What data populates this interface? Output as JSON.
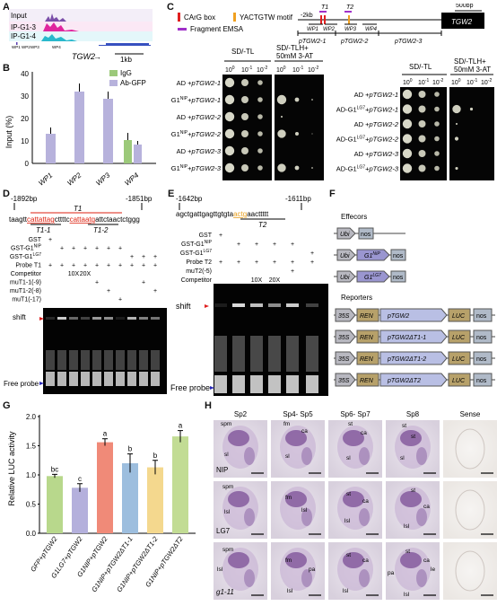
{
  "panel_labels": {
    "A": "A",
    "B": "B",
    "C": "C",
    "D": "D",
    "E": "E",
    "F": "F",
    "G": "G",
    "H": "H"
  },
  "panel_a": {
    "tracks": [
      "Input",
      "IP-G1-3",
      "IP-G1-4"
    ],
    "wp_labels": [
      "WP1",
      "WP2",
      "WP3",
      "WP4"
    ],
    "gene": "TGW2",
    "arrow": "→",
    "scale": "1kb"
  },
  "panel_b": {
    "legend": [
      "IgG",
      "Ab-GFP"
    ],
    "ylabel": "Input (%)",
    "yticks": [
      "0",
      "10",
      "20",
      "30",
      "40"
    ],
    "categories": [
      "WP1",
      "WP2",
      "WP3",
      "WP4"
    ]
  },
  "panel_c": {
    "legend": [
      "CArG box",
      "YACTGTW motif",
      "Fragment EMSA"
    ],
    "map": {
      "up": "-2kb",
      "t1": "T1",
      "t2": "T2",
      "wp": [
        "WP1",
        "WP2",
        "WP3",
        "WP4"
      ],
      "frags": [
        "pTGW2-1",
        "pTGW2-2",
        "pTGW2-3"
      ],
      "gene": "TGW2",
      "scale": "500bp"
    },
    "left": {
      "col1": "SD/-TL",
      "col2": "SD/-TLH+",
      "col2b": "50mM 3-AT",
      "dil": [
        "10",
        "10",
        "10"
      ],
      "dilexp": [
        "0",
        "-1",
        "-2"
      ],
      "rows": [
        [
          "AD +",
          "pTGW2-1"
        ],
        [
          "AD-G1",
          "pTGW2-1"
        ],
        [
          "AD +",
          "pTGW2-2"
        ],
        [
          "AD-G1",
          "pTGW2-2"
        ],
        [
          "AD +",
          "pTGW2-3"
        ],
        [
          "AD-G1",
          "pTGW2-3"
        ]
      ],
      "allele": "NIP"
    },
    "right": {
      "col1": "SD/-TL",
      "col2": "SD/-TLH+",
      "col2b": "50mM 3-AT",
      "rows": [
        [
          "AD +",
          "pTGW2-1"
        ],
        [
          "AD-G1",
          "pTGW2-1"
        ],
        [
          "AD +",
          "pTGW2-2"
        ],
        [
          "AD-G1",
          "pTGW2-2"
        ],
        [
          "AD +",
          "pTGW2-3"
        ],
        [
          "AD-G1",
          "pTGW2-3"
        ]
      ],
      "allele": "LG7"
    }
  },
  "panel_d": {
    "coord_left": "-1892bp",
    "coord_right": "-1851bp",
    "t1": "T1",
    "seq": [
      [
        "taagtt",
        "#000"
      ],
      [
        "cattattag",
        "#d21"
      ],
      [
        "cttttc",
        "#000"
      ],
      [
        "cattaatg",
        "#d21"
      ],
      [
        "attctaactctggg",
        "#000"
      ]
    ],
    "sub1": "T1-1",
    "sub2": "T1-2",
    "rows": [
      {
        "label": "GST",
        "marks": [
          "+",
          "",
          "",
          "",
          "",
          "",
          "",
          "",
          "",
          ""
        ]
      },
      {
        "label": "GST-G1",
        "sup": "NIP",
        "marks": [
          "",
          "+",
          "+",
          "+",
          "+",
          "+",
          "+",
          "",
          "",
          ""
        ]
      },
      {
        "label": "GST-G1",
        "sup": "LG7",
        "marks": [
          "",
          "",
          "",
          "",
          "",
          "",
          "",
          "+",
          "+",
          "+"
        ]
      },
      {
        "label": "Probe T1",
        "marks": [
          "+",
          "+",
          "+",
          "+",
          "+",
          "+",
          "+",
          "+",
          "+",
          "+"
        ]
      },
      {
        "label": "Competitor",
        "marks": [
          "",
          "",
          "10X",
          "20X",
          "",
          "",
          "",
          "",
          "",
          ""
        ]
      },
      {
        "label": "muT1-1(-9)",
        "marks": [
          "",
          "",
          "",
          "",
          "+",
          "",
          "",
          "",
          "+",
          ""
        ]
      },
      {
        "label": "muT1-2(-8)",
        "marks": [
          "",
          "",
          "",
          "",
          "",
          "+",
          "",
          "",
          "",
          "+"
        ]
      },
      {
        "label": "muT1(-17)",
        "marks": [
          "",
          "",
          "",
          "",
          "",
          "",
          "+",
          "",
          "",
          ""
        ]
      }
    ],
    "shift": "shift",
    "free": "Free probe"
  },
  "panel_e": {
    "coord_left": "-1642bp",
    "coord_right": "-1611bp",
    "seq": [
      [
        "agctgattgagttgtgta",
        "#000"
      ],
      [
        "actg",
        "#e8a020"
      ],
      [
        "aacttttt",
        "#000"
      ]
    ],
    "t2": "T2",
    "rows": [
      {
        "label": "GST",
        "marks": [
          "+",
          "",
          "",
          "",
          "",
          ""
        ]
      },
      {
        "label": "GST-G1",
        "sup": "NIP",
        "marks": [
          "",
          "+",
          "+",
          "+",
          "+",
          ""
        ]
      },
      {
        "label": "GST-G1",
        "sup": "LG7",
        "marks": [
          "",
          "",
          "",
          "",
          "",
          "+"
        ]
      },
      {
        "label": "Probe T2",
        "marks": [
          "+",
          "+",
          "+",
          "+",
          "+",
          "+"
        ]
      },
      {
        "label": "muT2(-5)",
        "marks": [
          "",
          "",
          "",
          "",
          "+",
          ""
        ]
      },
      {
        "label": "Competitor",
        "marks": [
          "",
          "",
          "10X",
          "20X",
          "",
          ""
        ]
      }
    ],
    "shift": "shift",
    "free": "Free probe"
  },
  "panel_f": {
    "effectors": "Effecors",
    "reporters": "Reporters",
    "eff_rows": [
      {
        "pro": "Ubi",
        "gene": "",
        "sup": "",
        "term": "nos"
      },
      {
        "pro": "Ubi",
        "gene": "G1",
        "sup": "NIP",
        "term": "nos"
      },
      {
        "pro": "Ubi",
        "gene": "G1",
        "sup": "LG7",
        "term": "nos"
      }
    ],
    "rep_rows": [
      "pTGW2",
      "pTGW2ΔT1-1",
      "pTGW2ΔT1-2",
      "pTGW2ΔT2"
    ],
    "p35": "35S",
    "ren": "REN",
    "luc": "LUC",
    "nos": "nos"
  },
  "chart_data": {
    "type": "bar",
    "ylabel": "Relative LUC activity",
    "ylim": [
      0,
      2.0
    ],
    "yticks": [
      "0.0",
      "0.5",
      "1.0",
      "1.5",
      "2.0"
    ],
    "categories": [
      "GFP+pTGW2",
      "G1LG7+pTGW2",
      "G1NIP+pTGW2",
      "G1NIP+pTGW2ΔT1-1",
      "G1NIP+pTGW2ΔT1-2",
      "G1NIP+pTGW2ΔT2"
    ],
    "values": [
      0.98,
      0.78,
      1.56,
      1.2,
      1.13,
      1.66
    ],
    "errors": [
      0.03,
      0.07,
      0.06,
      0.16,
      0.12,
      0.1
    ],
    "letters": [
      "bc",
      "c",
      "a",
      "b",
      "b",
      "a"
    ],
    "colors": [
      "#b8d88c",
      "#b4b0dc",
      "#f08a78",
      "#9dbede",
      "#f4d88e",
      "#c2dc94"
    ]
  },
  "panel_h": {
    "cols": [
      "Sp2",
      "Sp4- Sp5",
      "Sp6- Sp7",
      "Sp8",
      "Sense"
    ],
    "rows": [
      "NIP",
      "LG7",
      "g1-11"
    ],
    "tissue_labels": [
      [
        "spm",
        "sl",
        "fm",
        "ca",
        "sl",
        "st",
        "ca",
        "sl",
        "st",
        "st",
        "sl"
      ],
      [
        "spm",
        "lsl",
        "fm",
        "lsl",
        "st",
        "ca",
        "lsl",
        "st",
        "ca",
        "lsl"
      ],
      [
        "spm",
        "lsl",
        "fm",
        "pa",
        "lsl",
        "st",
        "ca",
        "lsl",
        "pa",
        "st",
        "ca",
        "le",
        "lsl"
      ]
    ]
  }
}
